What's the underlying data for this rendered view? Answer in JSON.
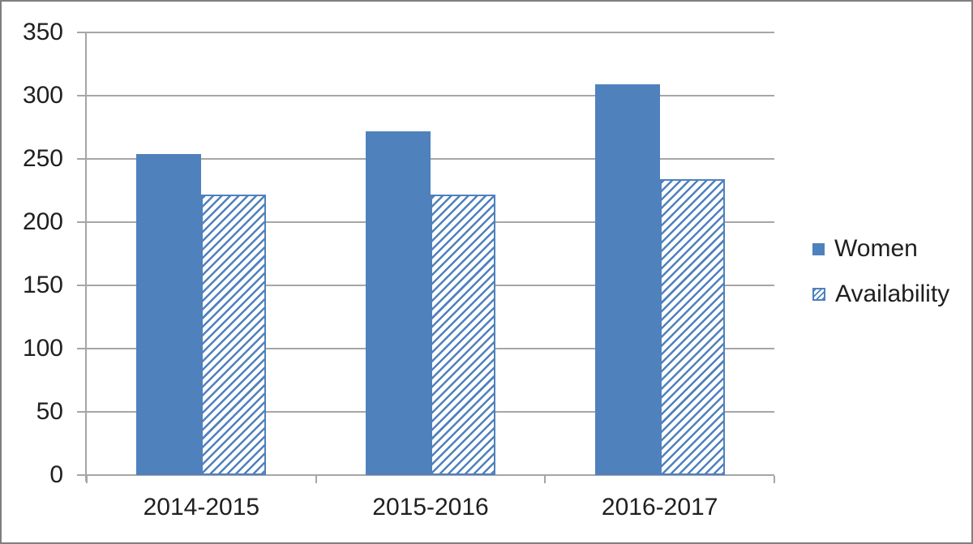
{
  "chart_data": {
    "type": "bar",
    "title": "",
    "xlabel": "",
    "ylabel": "",
    "categories": [
      "2014-2015",
      "2015-2016",
      "2016-2017"
    ],
    "series": [
      {
        "name": "Women",
        "values": [
          254,
          272,
          309
        ],
        "pattern": "solid"
      },
      {
        "name": "Availability",
        "values": [
          222,
          222,
          234
        ],
        "pattern": "diagonal-hatch"
      }
    ],
    "ylim": [
      0,
      350
    ],
    "y_ticks": [
      0,
      50,
      100,
      150,
      200,
      250,
      300,
      350
    ],
    "grid": "horizontal-on",
    "legend_position": "right",
    "colors": {
      "bar_blue": "#4f81bd",
      "gridline": "#a6a6a6",
      "axis": "#a6a6a6",
      "text": "#1f1f1f",
      "frame_border": "#7f7f7f",
      "background": "#ffffff"
    }
  }
}
